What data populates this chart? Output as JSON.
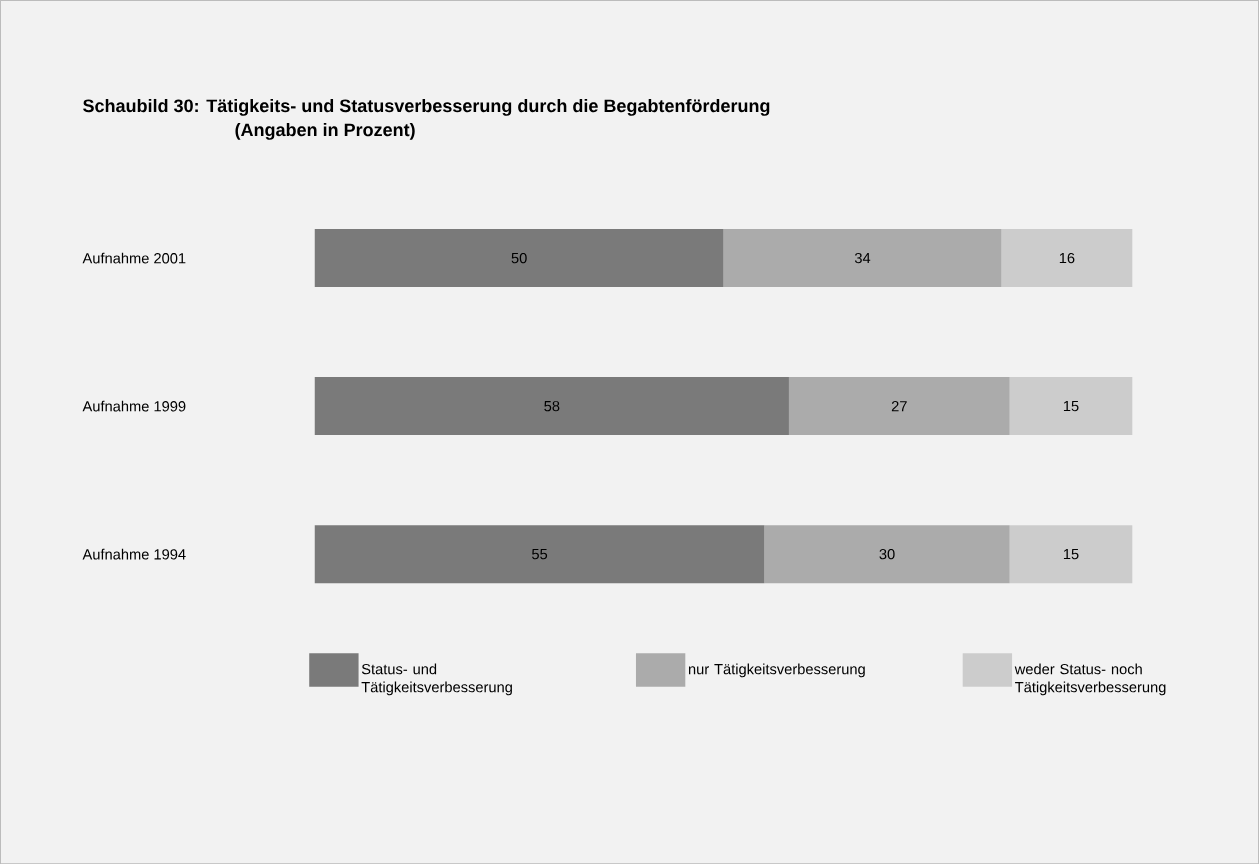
{
  "chart_data": {
    "type": "bar",
    "orientation": "horizontal",
    "stacked": true,
    "data_labels": true,
    "legend": "bottom",
    "title": "Schaubild 30: Tätigkeits- und Statusverbesserung durch die Begabtenförderung",
    "subtitle": "(Angaben in Prozent)",
    "categories": [
      "Aufnahme 2001",
      "Aufnahme 1999",
      "Aufnahme 1994"
    ],
    "series": [
      {
        "name": "Status- und Tätigkeitsverbesserung",
        "color": "#7a7a7a",
        "values": [
          50,
          58,
          55
        ]
      },
      {
        "name": "nur Tätigkeitsverbesserung",
        "color": "#ababab",
        "values": [
          34,
          27,
          30
        ]
      },
      {
        "name": "weder Status- noch Tätigkeitsverbesserung",
        "color": "#cccccc",
        "values": [
          16,
          15,
          15
        ]
      }
    ]
  }
}
